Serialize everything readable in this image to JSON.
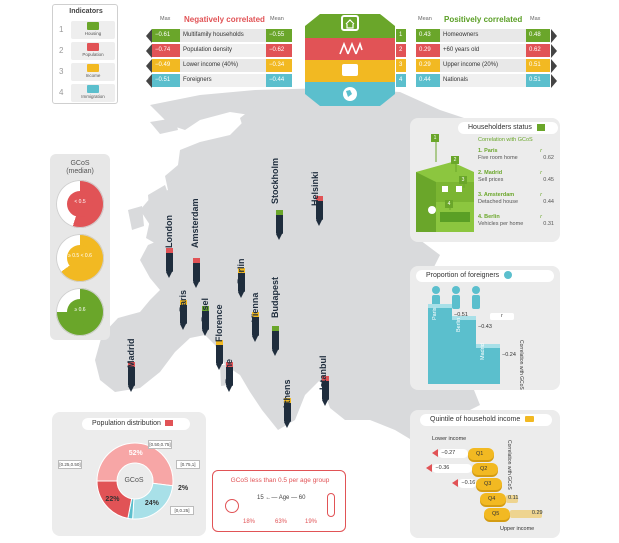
{
  "legend": {
    "title": "Indicators",
    "items": [
      {
        "num": "1",
        "label": "Housing",
        "color": "#6aa62a",
        "icon": "house-icon"
      },
      {
        "num": "2",
        "label": "Population",
        "color": "#e15356",
        "icon": "people-icon"
      },
      {
        "num": "3",
        "label": "Income",
        "color": "#f2b922",
        "icon": "wallet-icon"
      },
      {
        "num": "4",
        "label": "Immigration",
        "color": "#5bbfcd",
        "icon": "globe-icon"
      }
    ]
  },
  "correlations": {
    "negative_title": "Negatively correlated",
    "positive_title": "Positively correlated",
    "max_label": "Max",
    "mean_label": "Mean",
    "negative": [
      {
        "max": "−0.61",
        "name": "Multifamily households",
        "mean": "−0.55"
      },
      {
        "max": "−0.74",
        "name": "Population density",
        "mean": "−0.62"
      },
      {
        "max": "−0.49",
        "name": "Lower income (40%)",
        "mean": "−0.34"
      },
      {
        "max": "−0.51",
        "name": "Foreigners",
        "mean": "−0.44"
      }
    ],
    "positive": [
      {
        "num": "1",
        "mean": "0.43",
        "name": "Homeowners",
        "max": "0.48"
      },
      {
        "num": "2",
        "mean": "0.29",
        "name": "+60 years old",
        "max": "0.62"
      },
      {
        "num": "3",
        "mean": "0.29",
        "name": "Upper income (20%)",
        "max": "0.51"
      },
      {
        "num": "4",
        "mean": "0.44",
        "name": "Nationals",
        "max": "0.51"
      }
    ]
  },
  "gcos": {
    "title_line1": "GCoS",
    "title_line2": "(median)",
    "levels": [
      {
        "text": "< 0.5",
        "color": "#e15356",
        "fill": 0.55
      },
      {
        "text": "≥ 0.5 < 0.6",
        "color": "#f2b922",
        "fill": 0.65
      },
      {
        "text": "≥ 0.6",
        "color": "#6aa62a",
        "fill": 0.75
      }
    ]
  },
  "cities": [
    {
      "name": "London",
      "band": "#e15356"
    },
    {
      "name": "Amsterdam",
      "band": "#e15356"
    },
    {
      "name": "Paris",
      "band": "#f2b922"
    },
    {
      "name": "Berlin",
      "band": "#f2b922"
    },
    {
      "name": "Basel",
      "band": "#6aa62a"
    },
    {
      "name": "Stockholm",
      "band": "#6aa62a"
    },
    {
      "name": "Helsinki",
      "band": "#e15356"
    },
    {
      "name": "Madrid",
      "band": "#e15356"
    },
    {
      "name": "Florence",
      "band": "#f2b922"
    },
    {
      "name": "Vienna",
      "band": "#f2b922"
    },
    {
      "name": "Rome",
      "band": "#e15356"
    },
    {
      "name": "Budapest",
      "band": "#6aa62a"
    },
    {
      "name": "Athens",
      "band": "#f2b922"
    },
    {
      "name": "Istanbul",
      "band": "#e15356"
    }
  ],
  "householders": {
    "title": "Householders status",
    "subtitle": "Correlation with GCoS",
    "items": [
      {
        "name": "1. Paris",
        "desc": "Five room home",
        "r": "r",
        "value": "0.62"
      },
      {
        "name": "2. Madrid",
        "desc": "Sell prices",
        "r": "r",
        "value": "0.45"
      },
      {
        "name": "3. Amsterdam",
        "desc": "Detached house",
        "r": "r",
        "value": "0.44"
      },
      {
        "name": "4. Berlin",
        "desc": "Vehicles per home",
        "r": "r",
        "value": "0.31"
      }
    ],
    "marker_numbers": [
      "1",
      "2",
      "3",
      "4"
    ]
  },
  "foreigners": {
    "title": "Proportion of foreigners",
    "axis_label": "Correlation with GCoS",
    "r_label": "r",
    "steps": [
      {
        "city": "Paris",
        "value": "−0.51",
        "r": -0.51
      },
      {
        "city": "Berlin",
        "value": "−0.43",
        "r": -0.43
      },
      {
        "city": "Madrid",
        "value": "−0.24",
        "r": -0.24
      }
    ]
  },
  "quintile": {
    "title": "Quintile of household income",
    "lower_label": "Lower income",
    "upper_label": "Upper income",
    "axis_label": "Correlation with GCoS",
    "rows": [
      {
        "q": "Q1",
        "value": "−0.27",
        "r": -0.27
      },
      {
        "q": "Q2",
        "value": "−0.36",
        "r": -0.36
      },
      {
        "q": "Q3",
        "value": "−0.16",
        "r": -0.16
      },
      {
        "q": "Q4",
        "value": "0.11",
        "r": 0.11
      },
      {
        "q": "Q5",
        "value": "0.29",
        "r": 0.29
      }
    ]
  },
  "population": {
    "title": "Population distribution",
    "center": "GCoS",
    "segments": [
      {
        "label": "52%",
        "share": 52,
        "bucket": "[0.25,0.50]",
        "color": "#f7a6a6"
      },
      {
        "label": "24%",
        "share": 24,
        "bucket": "[0.50,0.75]",
        "color": "#a8e0e8"
      },
      {
        "label": "2%",
        "share": 2,
        "bucket": "[0.75,1]",
        "color": "#5bbfcd"
      },
      {
        "label": "22%",
        "share": 22,
        "bucket": "[0,0.25]",
        "color": "#e15356"
      }
    ]
  },
  "age": {
    "title": "GCoS less than 0.5 per age group",
    "low": "15",
    "mid": "Age",
    "high": "60",
    "values": [
      "18%",
      "63%",
      "19%"
    ]
  }
}
